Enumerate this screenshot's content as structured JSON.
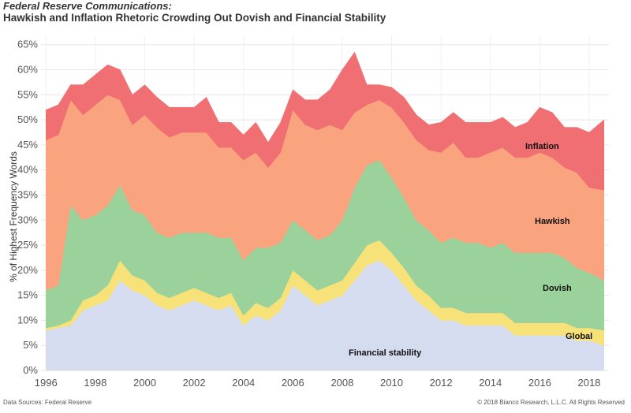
{
  "header": {
    "title": "Federal Reserve Communications:",
    "subtitle": "Hawkish and Inflation Rhetoric Crowding Out Dovish and Financial Stability"
  },
  "footer": {
    "source": "Data Sources: Federal Reserve",
    "copyright": "© 2018 Bianco Research, L.L.C. All Rights Reserved"
  },
  "chart_data": {
    "type": "area",
    "stacked": true,
    "ylabel": "% of Highest Frequency Words",
    "ylim": [
      0,
      67
    ],
    "xlim": [
      1995.8,
      2018.8
    ],
    "y_ticks": [
      "0%",
      "5%",
      "10%",
      "15%",
      "20%",
      "25%",
      "30%",
      "35%",
      "40%",
      "45%",
      "50%",
      "55%",
      "60%",
      "65%"
    ],
    "y_tick_values": [
      0,
      5,
      10,
      15,
      20,
      25,
      30,
      35,
      40,
      45,
      50,
      55,
      60,
      65
    ],
    "x_ticks": [
      "1996",
      "1998",
      "2000",
      "2002",
      "2004",
      "2006",
      "2008",
      "2010",
      "2012",
      "2014",
      "2016",
      "2018"
    ],
    "x_tick_values": [
      1996,
      1998,
      2000,
      2002,
      2004,
      2006,
      2008,
      2010,
      2012,
      2014,
      2016,
      2018
    ],
    "grid": true,
    "x": [
      1996.0,
      1996.5,
      1997.0,
      1997.5,
      1998.0,
      1998.5,
      1999.0,
      1999.5,
      2000.0,
      2000.5,
      2001.0,
      2001.5,
      2002.0,
      2002.5,
      2003.0,
      2003.5,
      2004.0,
      2004.5,
      2005.0,
      2005.5,
      2006.0,
      2006.5,
      2007.0,
      2007.5,
      2008.0,
      2008.5,
      2009.0,
      2009.5,
      2010.0,
      2010.5,
      2011.0,
      2011.5,
      2012.0,
      2012.5,
      2013.0,
      2013.5,
      2014.0,
      2014.5,
      2015.0,
      2015.5,
      2016.0,
      2016.5,
      2017.0,
      2017.5,
      2018.0,
      2018.6
    ],
    "series": [
      {
        "name": "Financial stability",
        "color": "#d6dcf0",
        "values": [
          8,
          8.5,
          9,
          12,
          13,
          14,
          18,
          16,
          15,
          13,
          12,
          13,
          14,
          13,
          12,
          13,
          9,
          11,
          10,
          12,
          17,
          15,
          13,
          14,
          15,
          18,
          21,
          22,
          20,
          17,
          14,
          12,
          10,
          10,
          9,
          9,
          9,
          9,
          7,
          7,
          7,
          7,
          7,
          6,
          6,
          5
        ]
      },
      {
        "name": "Global",
        "color": "#f7e27a",
        "values": [
          0.5,
          0.5,
          1,
          2,
          2,
          3,
          4,
          3,
          3,
          2.5,
          2.5,
          2.5,
          2.5,
          2.5,
          2.5,
          2.5,
          2,
          2.5,
          2.5,
          2.5,
          3,
          3,
          3,
          3,
          3,
          3.5,
          4,
          4,
          3.5,
          3.5,
          3,
          3,
          2.5,
          2.5,
          2.5,
          2.5,
          2.5,
          2.5,
          2.5,
          2.5,
          2.5,
          2.5,
          2.5,
          2.5,
          2.5,
          3
        ]
      },
      {
        "name": "Dovish",
        "color": "#9bd19b",
        "values": [
          7.5,
          8,
          23,
          16,
          16,
          16,
          15,
          13,
          13,
          12,
          12,
          12,
          11,
          12,
          12,
          11,
          11,
          11,
          12,
          11,
          10,
          10,
          10,
          10,
          12,
          15,
          16,
          16,
          15,
          14,
          13,
          13,
          13,
          14,
          14,
          14,
          13,
          14,
          14,
          14,
          14,
          14,
          13,
          12,
          11,
          10
        ]
      },
      {
        "name": "Hawkish",
        "color": "#f9a47e",
        "values": [
          30,
          30,
          21,
          21,
          22,
          22,
          17,
          17,
          20,
          21,
          20,
          20,
          20,
          20,
          18,
          18,
          20,
          19,
          16,
          18,
          22,
          21,
          22,
          22,
          18,
          15,
          12,
          12,
          14,
          15,
          16,
          16,
          18,
          19,
          17,
          17,
          19,
          19,
          19,
          19,
          20,
          19,
          18,
          19,
          17,
          18
        ]
      },
      {
        "name": "Inflation",
        "color": "#ef6f72",
        "values": [
          6,
          6,
          3,
          6,
          6,
          6,
          6,
          6,
          6,
          6,
          6,
          5,
          5,
          7,
          5,
          5,
          5,
          6,
          5,
          6,
          4,
          5,
          6,
          7,
          12,
          12,
          4,
          3,
          4,
          5,
          5,
          5,
          6,
          6,
          7,
          7,
          6,
          6,
          6,
          7,
          9,
          9,
          8,
          9,
          11,
          14
        ]
      }
    ],
    "labels": {
      "fin": "Financial stability",
      "global": "Global",
      "dovish": "Dovish",
      "hawkish": "Hawkish",
      "inflation": "Inflation"
    }
  }
}
